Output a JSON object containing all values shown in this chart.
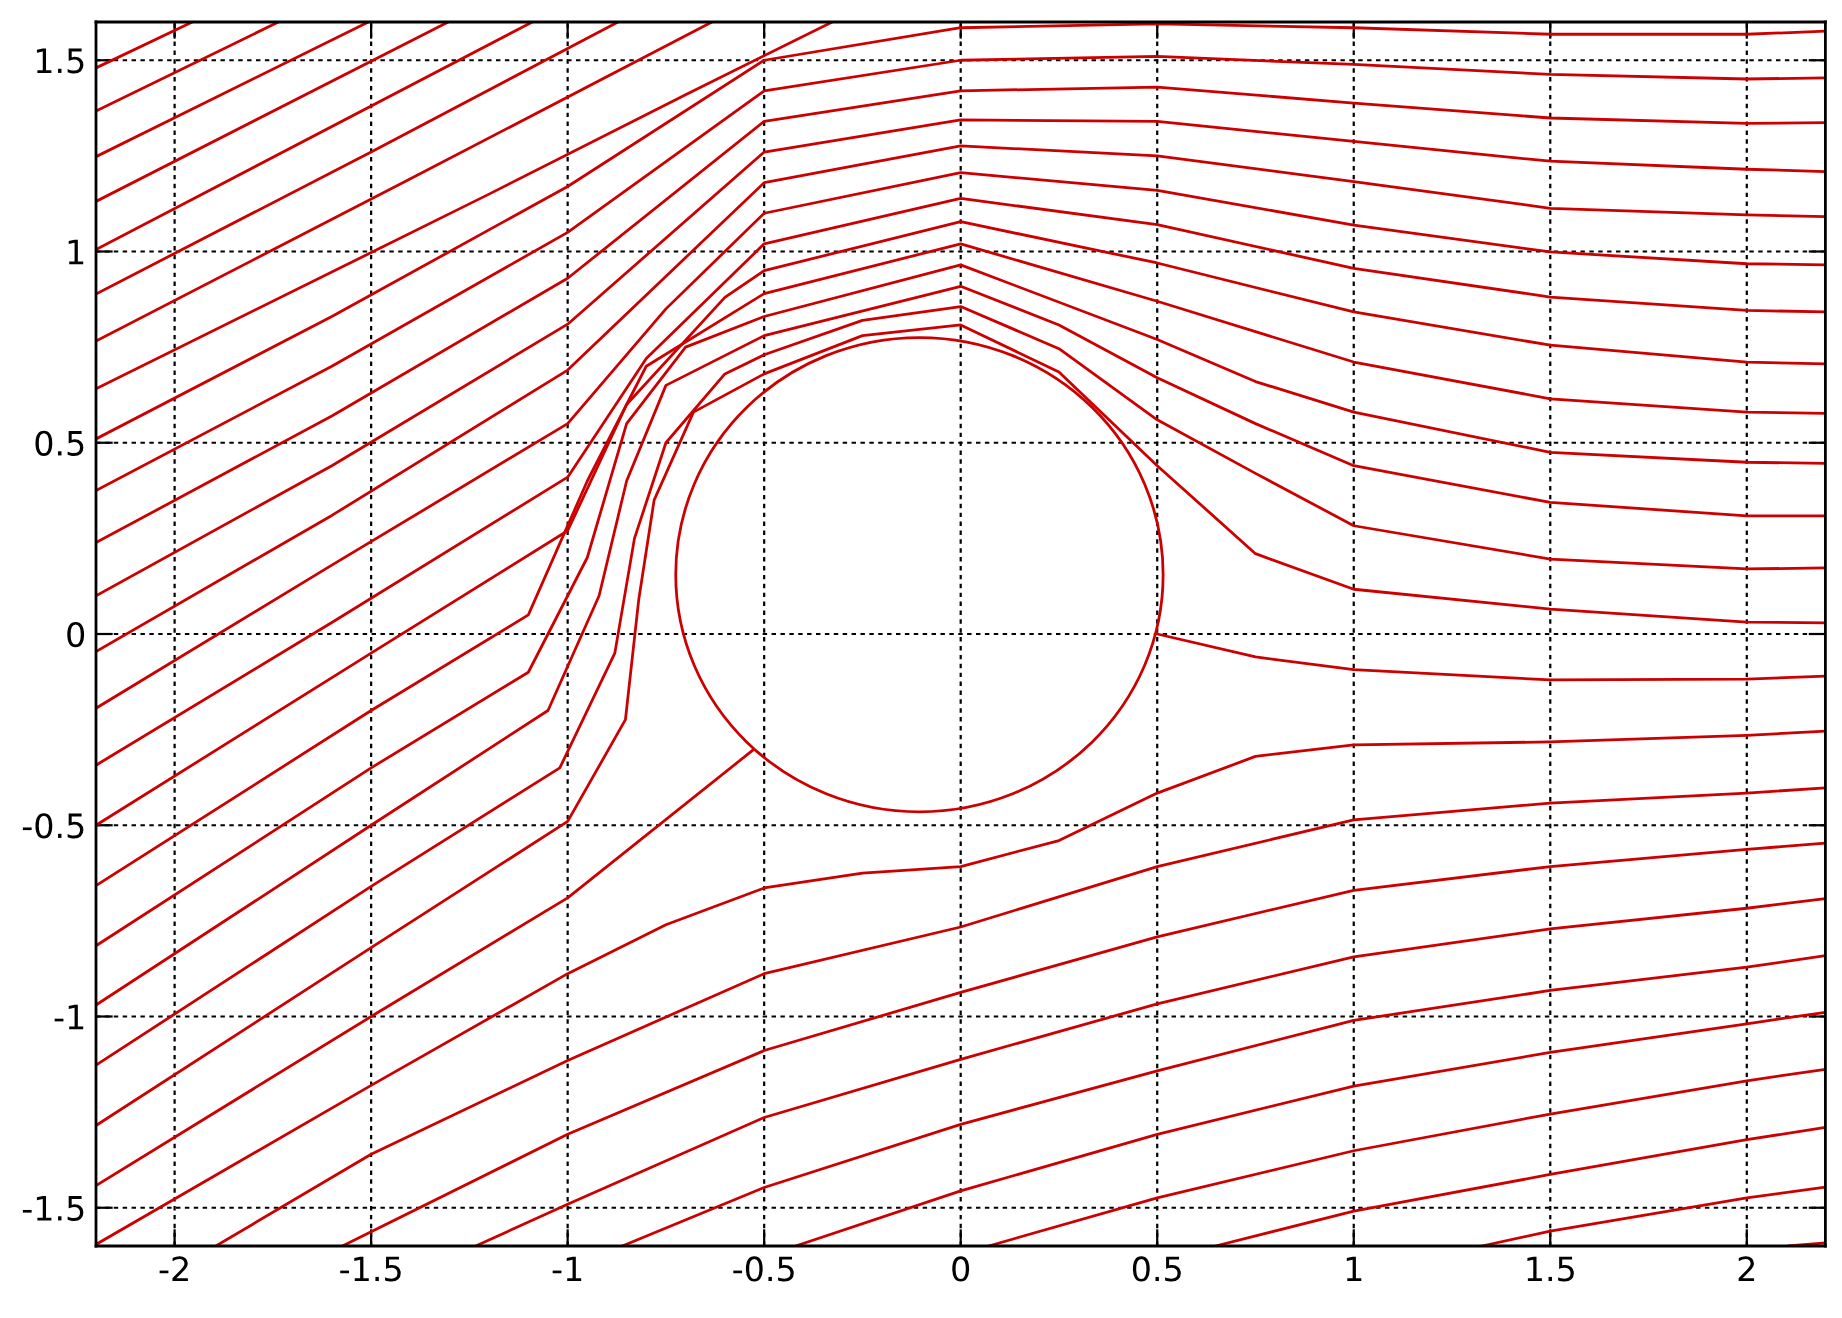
{
  "chart_data": {
    "type": "line",
    "xlim": [
      -2.2,
      2.2
    ],
    "ylim": [
      -1.6,
      1.6
    ],
    "xticks": [
      -2,
      -1.5,
      -1,
      -0.5,
      0,
      0.5,
      1,
      1.5,
      2
    ],
    "yticks": [
      -1.5,
      -1,
      -0.5,
      0,
      0.5,
      1,
      1.5
    ],
    "grid": true,
    "line_style": "solid",
    "marker": "none",
    "series": [
      {
        "color": "#cc0000",
        "x": [
          -2.2,
          -1.955
        ],
        "values": [
          1.48,
          1.6
        ]
      },
      {
        "color": "#cc0000",
        "x": [
          -2.2,
          -1.736
        ],
        "values": [
          1.367,
          1.6
        ]
      },
      {
        "color": "#cc0000",
        "x": [
          -2.2,
          -1.507
        ],
        "values": [
          1.248,
          1.6
        ]
      },
      {
        "color": "#cc0000",
        "x": [
          -2.2,
          -1.304
        ],
        "values": [
          1.131,
          1.6
        ]
      },
      {
        "color": "#cc0000",
        "x": [
          -2.2,
          -1.09
        ],
        "values": [
          1.005,
          1.6
        ]
      },
      {
        "color": "#cc0000",
        "x": [
          -2.2,
          -1.5,
          -0.872
        ],
        "values": [
          0.889,
          1.26,
          1.6
        ]
      },
      {
        "color": "#cc0000",
        "x": [
          -2.2,
          -1.4,
          -0.633
        ],
        "values": [
          0.766,
          1.19,
          1.6
        ]
      },
      {
        "color": "#cc0000",
        "x": [
          -2.2,
          -1.2,
          -0.7,
          -0.327
        ],
        "values": [
          0.641,
          1.15,
          1.41,
          1.6
        ]
      },
      {
        "color": "#cc0000",
        "x": [
          -2.2,
          -1.6,
          -1.0,
          -0.5,
          0,
          0.5,
          1,
          1.5,
          2,
          2.2
        ],
        "values": [
          0.51,
          0.83,
          1.17,
          1.5,
          1.585,
          1.595,
          1.585,
          1.568,
          1.568,
          1.576
        ]
      },
      {
        "color": "#cc0000",
        "x": [
          -2.2,
          -1.6,
          -1.0,
          -0.5,
          0,
          0.5,
          1,
          1.5,
          2,
          2.2
        ],
        "values": [
          0.375,
          0.7,
          1.05,
          1.42,
          1.5,
          1.51,
          1.489,
          1.463,
          1.451,
          1.454
        ]
      },
      {
        "color": "#cc0000",
        "x": [
          -2.2,
          -1.6,
          -1.0,
          -0.5,
          0,
          0.5,
          1,
          1.5,
          2,
          2.2
        ],
        "values": [
          0.239,
          0.57,
          0.93,
          1.34,
          1.42,
          1.43,
          1.388,
          1.349,
          1.335,
          1.337
        ]
      },
      {
        "color": "#cc0000",
        "x": [
          -2.2,
          -1.6,
          -1.0,
          -0.5,
          0,
          0.5,
          1,
          1.5,
          2,
          2.2
        ],
        "values": [
          0.1,
          0.44,
          0.81,
          1.26,
          1.344,
          1.34,
          1.288,
          1.236,
          1.215,
          1.209
        ]
      },
      {
        "color": "#cc0000",
        "x": [
          -2.2,
          -1.6,
          -1.0,
          -0.5,
          0,
          0.5,
          1,
          1.5,
          2,
          2.2
        ],
        "values": [
          -0.046,
          0.31,
          0.69,
          1.18,
          1.276,
          1.25,
          1.183,
          1.113,
          1.096,
          1.091
        ]
      },
      {
        "color": "#cc0000",
        "x": [
          -2.2,
          -1.6,
          -1.0,
          -0.75,
          -0.5,
          0,
          0.5,
          1,
          1.5,
          2,
          2.2
        ],
        "values": [
          -0.194,
          0.18,
          0.55,
          0.85,
          1.1,
          1.206,
          1.16,
          1.069,
          0.999,
          0.968,
          0.965
        ]
      },
      {
        "color": "#cc0000",
        "x": [
          -2.2,
          -1.6,
          -1.0,
          -0.8,
          -0.5,
          0,
          0.5,
          1,
          1.5,
          2,
          2.2
        ],
        "values": [
          -0.343,
          0.03,
          0.41,
          0.72,
          1.02,
          1.139,
          1.07,
          0.956,
          0.881,
          0.846,
          0.842
        ]
      },
      {
        "color": "#cc0000",
        "x": [
          -2.2,
          -1.5,
          -1.0,
          -0.85,
          -0.6,
          -0.5,
          0,
          0.5,
          1,
          1.5,
          2,
          2.2
        ],
        "values": [
          -0.5,
          -0.05,
          0.27,
          0.6,
          0.88,
          0.95,
          1.078,
          0.97,
          0.842,
          0.755,
          0.711,
          0.706
        ]
      },
      {
        "color": "#cc0000",
        "x": [
          -2.2,
          -1.5,
          -1.1,
          -0.95,
          -0.8,
          -0.5,
          0,
          0.5,
          1,
          1.5,
          2,
          2.2
        ],
        "values": [
          -0.658,
          -0.2,
          0.05,
          0.4,
          0.7,
          0.89,
          1.02,
          0.87,
          0.711,
          0.615,
          0.58,
          0.577
        ]
      },
      {
        "color": "#cc0000",
        "x": [
          -2.2,
          -1.5,
          -1.1,
          -0.95,
          -0.85,
          -0.7,
          -0.5,
          0,
          0.5,
          0.75,
          1,
          1.5,
          2,
          2.2
        ],
        "values": [
          -0.815,
          -0.35,
          -0.1,
          0.2,
          0.55,
          0.75,
          0.83,
          0.965,
          0.77,
          0.66,
          0.58,
          0.475,
          0.449,
          0.446
        ]
      },
      {
        "color": "#cc0000",
        "x": [
          -2.2,
          -1.5,
          -1.05,
          -0.92,
          -0.85,
          -0.75,
          -0.5,
          0,
          0.25,
          0.5,
          0.75,
          1,
          1.5,
          2,
          2.2
        ],
        "values": [
          -0.97,
          -0.5,
          -0.2,
          0.1,
          0.4,
          0.65,
          0.78,
          0.909,
          0.808,
          0.67,
          0.55,
          0.44,
          0.344,
          0.309,
          0.309
        ]
      },
      {
        "color": "#cc0000",
        "x": [
          -2.2,
          -1.5,
          -1.02,
          -0.88,
          -0.83,
          -0.75,
          -0.6,
          -0.5,
          -0.25,
          0,
          0.25,
          0.5,
          0.75,
          1,
          1.5,
          2,
          2.2
        ],
        "values": [
          -1.127,
          -0.66,
          -0.35,
          -0.05,
          0.25,
          0.5,
          0.68,
          0.73,
          0.82,
          0.856,
          0.746,
          0.56,
          0.42,
          0.283,
          0.196,
          0.17,
          0.173
        ]
      },
      {
        "color": "#cc0000",
        "x": [
          -2.2,
          -1.5,
          -1.0,
          -0.853,
          -0.819,
          -0.78,
          -0.68,
          -0.5,
          -0.25,
          0,
          0.25,
          0.5,
          0.75,
          1,
          1.5,
          2,
          2.2
        ],
        "values": [
          -1.285,
          -0.82,
          -0.49,
          -0.224,
          0.091,
          0.35,
          0.58,
          0.68,
          0.78,
          0.808,
          0.685,
          0.44,
          0.21,
          0.117,
          0.065,
          0.031,
          0.029
        ]
      },
      {
        "color": "#cc0000",
        "x": [
          -2.2,
          -1.5,
          -1.0,
          -0.528
        ],
        "values": [
          -1.442,
          -1.0,
          -0.69,
          -0.303
        ]
      },
      {
        "color": "#cc0000",
        "x": [
          0.5,
          0.75,
          1,
          1.5,
          2,
          2.2
        ],
        "values": [
          0.0,
          -0.06,
          -0.093,
          -0.12,
          -0.118,
          -0.11
        ]
      },
      {
        "color": "#cc0000",
        "x": [
          -2.2,
          -1.5,
          -1,
          -0.75,
          -0.5,
          -0.25,
          0,
          0.25,
          0.5,
          0.75,
          1,
          1.5,
          2,
          2.2
        ],
        "values": [
          -1.596,
          -1.18,
          -0.888,
          -0.76,
          -0.664,
          -0.625,
          -0.608,
          -0.54,
          -0.416,
          -0.32,
          -0.29,
          -0.282,
          -0.265,
          -0.254
        ]
      },
      {
        "color": "#cc0000",
        "x": [
          -1.895,
          -1.5,
          -1,
          -0.5,
          0,
          0.5,
          1,
          1.5,
          2,
          2.2
        ],
        "values": [
          -1.6,
          -1.36,
          -1.115,
          -0.888,
          -0.766,
          -0.608,
          -0.486,
          -0.442,
          -0.416,
          -0.402
        ]
      },
      {
        "color": "#cc0000",
        "x": [
          -1.573,
          -1,
          -0.5,
          0,
          0.5,
          1,
          1.5,
          2,
          2.2
        ],
        "values": [
          -1.6,
          -1.308,
          -1.089,
          -0.937,
          -0.792,
          -0.67,
          -0.608,
          -0.563,
          -0.547
        ]
      },
      {
        "color": "#cc0000",
        "x": [
          -1.234,
          -1,
          -0.5,
          0,
          0.5,
          1,
          1.5,
          2,
          2.2
        ],
        "values": [
          -1.6,
          -1.491,
          -1.264,
          -1.112,
          -0.967,
          -0.844,
          -0.771,
          -0.717,
          -0.692
        ]
      },
      {
        "color": "#cc0000",
        "x": [
          -0.861,
          -0.5,
          0,
          0.5,
          1,
          1.5,
          2,
          2.2
        ],
        "values": [
          -1.6,
          -1.447,
          -1.282,
          -1.142,
          -1.01,
          -0.932,
          -0.871,
          -0.841
        ]
      },
      {
        "color": "#cc0000",
        "x": [
          -0.42,
          0,
          0.5,
          1,
          1.5,
          2,
          2.2
        ],
        "values": [
          -1.6,
          -1.456,
          -1.308,
          -1.182,
          -1.094,
          -1.019,
          -0.989
        ]
      },
      {
        "color": "#cc0000",
        "x": [
          0.071,
          0.5,
          1,
          1.5,
          2,
          2.2
        ],
        "values": [
          -1.6,
          -1.474,
          -1.351,
          -1.255,
          -1.168,
          -1.138
        ]
      },
      {
        "color": "#cc0000",
        "x": [
          0.648,
          1,
          1.5,
          2,
          2.2
        ],
        "values": [
          -1.6,
          -1.509,
          -1.413,
          -1.322,
          -1.29
        ]
      },
      {
        "color": "#cc0000",
        "x": [
          1.326,
          1.5,
          2,
          2.2
        ],
        "values": [
          -1.6,
          -1.561,
          -1.474,
          -1.446
        ]
      },
      {
        "color": "#cc0000",
        "x": [
          2.106,
          2.2
        ],
        "values": [
          -1.6,
          -1.592
        ]
      }
    ]
  }
}
